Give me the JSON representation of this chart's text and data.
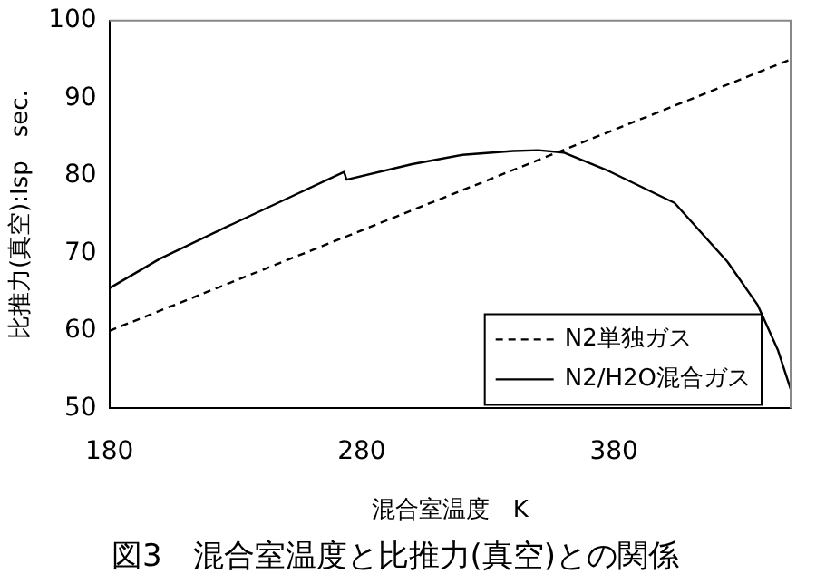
{
  "chart_data": {
    "type": "line",
    "title": "図3　混合室温度と比推力(真空)との関係",
    "xlabel": "混合室温度　K",
    "ylabel": "比推力(真空):Isp　sec.",
    "xlim": [
      180,
      450
    ],
    "xticks": [
      180,
      280,
      380
    ],
    "ylim": [
      50,
      100
    ],
    "yticks": [
      50,
      60,
      70,
      80,
      90,
      100
    ],
    "grid": false,
    "legend": "bottom right",
    "marker": "none",
    "series": [
      {
        "name": "N2単独ガス",
        "color": "#000000",
        "line_style": "dashed",
        "x": [
          180,
          450
        ],
        "values": [
          60,
          95
        ]
      },
      {
        "name": "N2/H2O混合ガス",
        "color": "#000000",
        "line_style": "solid",
        "x": [
          180,
          200,
          227,
          250,
          273,
          274,
          300,
          320,
          340,
          350,
          360,
          378,
          404,
          425,
          437,
          445,
          450
        ],
        "values": [
          65.5,
          69.3,
          73.5,
          77,
          80.5,
          79.5,
          81.5,
          82.7,
          83.2,
          83.3,
          83,
          80.6,
          76.5,
          68.9,
          63.3,
          57.5,
          52.5
        ]
      }
    ]
  }
}
